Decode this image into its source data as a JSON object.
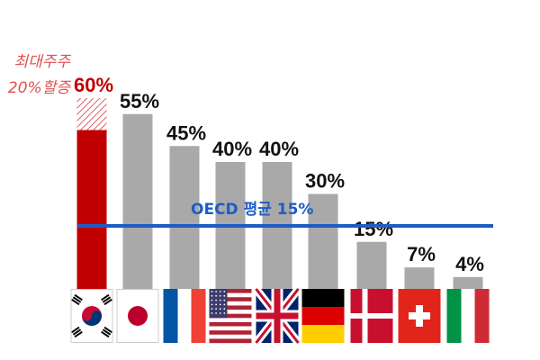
{
  "chart_data": {
    "type": "bar",
    "title": "",
    "xlabel": "",
    "ylabel": "",
    "ylim": [
      0,
      64
    ],
    "categories": [
      "korea-flag",
      "japan-flag",
      "france-flag",
      "usa-flag",
      "uk-flag",
      "germany-flag",
      "denmark-flag",
      "switzerland-flag",
      "italy-flag"
    ],
    "values": [
      60,
      55,
      45,
      40,
      40,
      30,
      15,
      7,
      4
    ],
    "value_labels": [
      "60%",
      "55%",
      "45%",
      "40%",
      "40%",
      "30%",
      "15%",
      "7%",
      "4%"
    ],
    "highlight_index": 0,
    "highlight_base_value": 50,
    "highlight_note": [
      "최대주주",
      "20%할증"
    ],
    "average": {
      "value": 15,
      "label": "OECD 평균 15%"
    },
    "colors": {
      "bar": "#a9a9a9",
      "highlight": "#c00000",
      "highlight_label": "#c00000",
      "highlight_note": "#e05050",
      "average_line": "#1f5cc4",
      "average_label": "#1f5cc4",
      "label": "#111111"
    }
  }
}
